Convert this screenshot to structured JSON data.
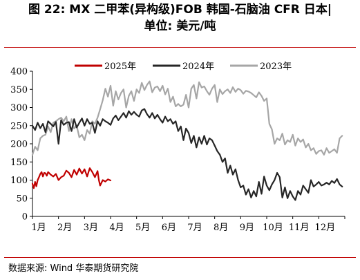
{
  "title": {
    "line1": "图 22: MX 二甲苯(异构级)FOB 韩国-石脑油 CFR 日本|",
    "line2": "单位: 美元/吨"
  },
  "source": "数据来源: Wind 华泰期货研究院",
  "chart_data": {
    "type": "line",
    "title": "",
    "xlabel": "",
    "ylabel": "",
    "ylim": [
      0,
      400
    ],
    "yticks": [
      "0",
      "50",
      "100",
      "150",
      "200",
      "250",
      "300",
      "350",
      "400"
    ],
    "xticks": [
      "1月",
      "2月",
      "3月",
      "4月",
      "5月",
      "6月",
      "7月",
      "8月",
      "9月",
      "10月",
      "11月",
      "12月"
    ],
    "x_unit": "month (1 = Jan 1)",
    "legend_position": "top",
    "grid": false,
    "series": [
      {
        "name": "2025年",
        "color": "#c00000",
        "x": [
          1.0,
          1.05,
          1.1,
          1.15,
          1.2,
          1.25,
          1.3,
          1.35,
          1.4,
          1.45,
          1.5,
          1.55,
          1.6,
          1.7,
          1.8,
          1.9,
          2.0,
          2.1,
          2.2,
          2.3,
          2.4,
          2.5,
          2.6,
          2.7,
          2.8,
          2.9,
          3.0,
          3.1,
          3.2,
          3.3,
          3.4,
          3.5,
          3.55,
          3.6,
          3.7,
          3.8,
          3.9,
          4.0
        ],
        "y": [
          90,
          78,
          95,
          83,
          100,
          108,
          117,
          122,
          110,
          120,
          119,
          112,
          122,
          115,
          110,
          117,
          100,
          108,
          112,
          126,
          120,
          108,
          128,
          115,
          132,
          118,
          130,
          110,
          133,
          122,
          108,
          125,
          100,
          85,
          100,
          96,
          102,
          99
        ]
      },
      {
        "name": "2024年",
        "color": "#262626",
        "x": [
          1.0,
          1.1,
          1.2,
          1.3,
          1.4,
          1.5,
          1.6,
          1.7,
          1.8,
          1.9,
          2.0,
          2.1,
          2.2,
          2.3,
          2.4,
          2.5,
          2.6,
          2.7,
          2.8,
          2.9,
          3.0,
          3.1,
          3.2,
          3.3,
          3.4,
          3.5,
          3.6,
          3.7,
          3.8,
          3.9,
          4.0,
          4.1,
          4.2,
          4.3,
          4.4,
          4.5,
          4.6,
          4.7,
          4.8,
          4.9,
          5.0,
          5.1,
          5.2,
          5.3,
          5.4,
          5.5,
          5.6,
          5.7,
          5.8,
          5.9,
          6.0,
          6.1,
          6.2,
          6.3,
          6.4,
          6.5,
          6.6,
          6.7,
          6.8,
          6.9,
          7.0,
          7.1,
          7.2,
          7.3,
          7.4,
          7.5,
          7.6,
          7.7,
          7.8,
          7.9,
          8.0,
          8.1,
          8.2,
          8.3,
          8.4,
          8.5,
          8.6,
          8.7,
          8.8,
          8.9,
          9.0,
          9.1,
          9.2,
          9.3,
          9.4,
          9.5,
          9.6,
          9.7,
          9.8,
          9.9,
          10.0,
          10.1,
          10.2,
          10.3,
          10.4,
          10.5,
          10.6,
          10.7,
          10.8,
          10.9,
          11.0,
          11.1,
          11.2,
          11.3,
          11.4,
          11.5,
          11.6,
          11.7,
          11.8,
          11.9,
          12.0,
          12.1,
          12.2,
          12.3,
          12.4,
          12.5,
          12.6,
          12.7,
          12.8,
          12.9
        ],
        "y": [
          250,
          238,
          258,
          243,
          255,
          232,
          262,
          255,
          248,
          260,
          200,
          265,
          252,
          258,
          260,
          235,
          268,
          245,
          258,
          270,
          250,
          268,
          255,
          258,
          230,
          262,
          250,
          268,
          262,
          258,
          252,
          270,
          278,
          265,
          275,
          285,
          272,
          290,
          280,
          288,
          280,
          275,
          292,
          296,
          282,
          272,
          285,
          270,
          280,
          268,
          258,
          275,
          262,
          268,
          255,
          262,
          235,
          248,
          210,
          242,
          230,
          202,
          222,
          190,
          218,
          200,
          222,
          198,
          215,
          210,
          195,
          180,
          170,
          150,
          160,
          120,
          140,
          115,
          130,
          100,
          80,
          85,
          60,
          75,
          52,
          70,
          55,
          95,
          62,
          110,
          85,
          72,
          88,
          100,
          120,
          108,
          52,
          80,
          50,
          70,
          55,
          45,
          70,
          60,
          85,
          75,
          65,
          100,
          82,
          88,
          95,
          85,
          88,
          93,
          88,
          98,
          92,
          103,
          88,
          82
        ]
      },
      {
        "name": "2023年",
        "color": "#a6a6a6",
        "x": [
          1.0,
          1.1,
          1.2,
          1.3,
          1.4,
          1.5,
          1.6,
          1.7,
          1.8,
          1.9,
          2.0,
          2.1,
          2.2,
          2.3,
          2.4,
          2.5,
          2.6,
          2.7,
          2.8,
          2.9,
          3.0,
          3.1,
          3.2,
          3.3,
          3.4,
          3.5,
          3.6,
          3.7,
          3.8,
          3.9,
          4.0,
          4.1,
          4.2,
          4.3,
          4.4,
          4.5,
          4.6,
          4.7,
          4.8,
          4.9,
          5.0,
          5.1,
          5.2,
          5.3,
          5.4,
          5.5,
          5.6,
          5.7,
          5.8,
          5.9,
          6.0,
          6.1,
          6.2,
          6.3,
          6.4,
          6.5,
          6.6,
          6.7,
          6.8,
          6.9,
          7.0,
          7.1,
          7.2,
          7.3,
          7.4,
          7.5,
          7.6,
          7.7,
          7.8,
          7.9,
          8.0,
          8.1,
          8.2,
          8.3,
          8.4,
          8.5,
          8.6,
          8.7,
          8.8,
          8.9,
          9.0,
          9.1,
          9.2,
          9.3,
          9.4,
          9.5,
          9.6,
          9.7,
          9.8,
          9.9,
          10.0,
          10.1,
          10.2,
          10.3,
          10.4,
          10.5,
          10.6,
          10.7,
          10.8,
          10.9,
          11.0,
          11.1,
          11.2,
          11.3,
          11.4,
          11.5,
          11.6,
          11.7,
          11.8,
          11.9,
          12.0,
          12.1,
          12.2,
          12.3,
          12.4,
          12.5,
          12.6,
          12.7,
          12.8,
          12.9
        ],
        "y": [
          170,
          192,
          182,
          215,
          222,
          225,
          248,
          232,
          258,
          262,
          268,
          272,
          262,
          275,
          235,
          268,
          242,
          250,
          218,
          225,
          210,
          238,
          228,
          262,
          255,
          272,
          295,
          320,
          352,
          330,
          360,
          305,
          345,
          322,
          340,
          350,
          300,
          332,
          345,
          318,
          350,
          340,
          368,
          348,
          362,
          372,
          342,
          355,
          358,
          345,
          360,
          336,
          352,
          315,
          330,
          303,
          310,
          303,
          308,
          335,
          300,
          352,
          362,
          325,
          370,
          355,
          358,
          345,
          335,
          352,
          362,
          315,
          350,
          337,
          345,
          350,
          340,
          356,
          343,
          352,
          348,
          338,
          346,
          344,
          340,
          334,
          328,
          342,
          332,
          318,
          325,
          255,
          240,
          200,
          215,
          210,
          228,
          198,
          210,
          205,
          225,
          195,
          215,
          205,
          212,
          190,
          200,
          182,
          188,
          172,
          180,
          182,
          170,
          188,
          175,
          180,
          185,
          175,
          215,
          222
        ]
      }
    ]
  }
}
